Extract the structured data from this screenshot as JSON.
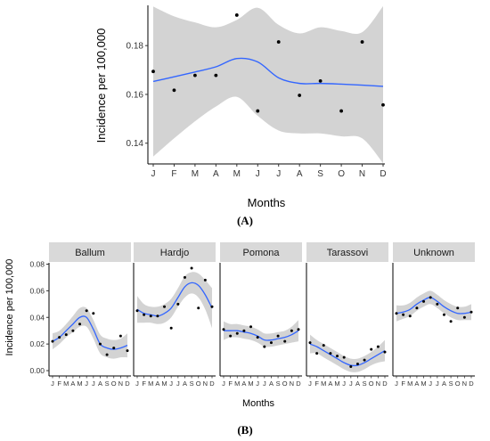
{
  "chart_data": [
    {
      "type": "scatter",
      "panel_label": "(A)",
      "xlabel": "Months",
      "ylabel": "Incidence per 100,000",
      "categories": [
        "J",
        "F",
        "M",
        "A",
        "M",
        "J",
        "J",
        "A",
        "S",
        "O",
        "N",
        "D"
      ],
      "yticks": [
        0.14,
        0.16,
        0.18
      ],
      "ylim": [
        0.1315,
        0.1965
      ],
      "points": [
        0.1694,
        0.1617,
        0.1678,
        0.1678,
        0.1925,
        0.1532,
        0.1815,
        0.1596,
        0.1655,
        0.1532,
        0.1815,
        0.1557
      ],
      "smooth": [
        0.1653,
        0.1672,
        0.1692,
        0.1713,
        0.1747,
        0.1733,
        0.1668,
        0.1645,
        0.1645,
        0.1642,
        0.1638,
        0.1633
      ],
      "band_upper": [
        0.196,
        0.192,
        0.1895,
        0.1875,
        0.1905,
        0.1955,
        0.1885,
        0.185,
        0.1875,
        0.186,
        0.1855,
        0.1962
      ],
      "band_lower": [
        0.1345,
        0.142,
        0.149,
        0.155,
        0.159,
        0.1512,
        0.1452,
        0.144,
        0.144,
        0.1428,
        0.142,
        0.1318
      ],
      "grid": false,
      "colors": {
        "line": "#3366FF",
        "band": "#D3D3D3",
        "point": "#000000"
      }
    },
    {
      "type": "scatter",
      "panel_label": "(B)",
      "xlabel": "Months",
      "ylabel": "Incidence per 100,000",
      "categories": [
        "J",
        "F",
        "M",
        "A",
        "M",
        "J",
        "J",
        "A",
        "S",
        "O",
        "N",
        "D"
      ],
      "yticks": [
        0.0,
        0.02,
        0.04,
        0.06,
        0.08
      ],
      "ylim": [
        -0.004,
        0.081
      ],
      "facets": [
        {
          "name": "Ballum",
          "points": [
            0.022,
            0.025,
            0.027,
            0.03,
            0.035,
            0.045,
            0.043,
            0.02,
            0.012,
            0.017,
            0.026,
            0.015
          ],
          "smooth": [
            0.022,
            0.025,
            0.03,
            0.035,
            0.04,
            0.04,
            0.031,
            0.02,
            0.017,
            0.016,
            0.017,
            0.019
          ],
          "band_upper": [
            0.028,
            0.03,
            0.035,
            0.041,
            0.047,
            0.047,
            0.038,
            0.027,
            0.024,
            0.023,
            0.024,
            0.028
          ],
          "band_lower": [
            0.016,
            0.02,
            0.025,
            0.029,
            0.033,
            0.033,
            0.024,
            0.013,
            0.01,
            0.009,
            0.01,
            0.01
          ]
        },
        {
          "name": "Hardjo",
          "points": [
            0.045,
            0.042,
            0.041,
            0.041,
            0.048,
            0.032,
            0.05,
            0.07,
            0.077,
            0.047,
            0.068,
            0.048
          ],
          "smooth": [
            0.046,
            0.043,
            0.042,
            0.041,
            0.043,
            0.047,
            0.055,
            0.063,
            0.066,
            0.064,
            0.057,
            0.047
          ],
          "band_upper": [
            0.056,
            0.05,
            0.048,
            0.048,
            0.05,
            0.054,
            0.062,
            0.071,
            0.074,
            0.073,
            0.068,
            0.062
          ],
          "band_lower": [
            0.036,
            0.036,
            0.036,
            0.035,
            0.036,
            0.04,
            0.048,
            0.055,
            0.058,
            0.055,
            0.046,
            0.032
          ]
        },
        {
          "name": "Pomona",
          "points": [
            0.031,
            0.026,
            0.028,
            0.03,
            0.033,
            0.025,
            0.018,
            0.021,
            0.026,
            0.022,
            0.03,
            0.031
          ],
          "smooth": [
            0.03,
            0.03,
            0.03,
            0.029,
            0.028,
            0.026,
            0.023,
            0.023,
            0.024,
            0.025,
            0.027,
            0.03
          ],
          "band_upper": [
            0.037,
            0.035,
            0.035,
            0.034,
            0.033,
            0.031,
            0.028,
            0.028,
            0.029,
            0.03,
            0.033,
            0.038
          ],
          "band_lower": [
            0.023,
            0.025,
            0.025,
            0.024,
            0.023,
            0.021,
            0.018,
            0.018,
            0.019,
            0.02,
            0.021,
            0.022
          ]
        },
        {
          "name": "Tarassovi",
          "points": [
            0.021,
            0.013,
            0.019,
            0.013,
            0.011,
            0.01,
            0.003,
            0.005,
            0.008,
            0.016,
            0.018,
            0.014
          ],
          "smooth": [
            0.02,
            0.018,
            0.015,
            0.012,
            0.009,
            0.006,
            0.004,
            0.004,
            0.006,
            0.009,
            0.012,
            0.015
          ],
          "band_upper": [
            0.027,
            0.023,
            0.02,
            0.017,
            0.014,
            0.011,
            0.009,
            0.009,
            0.011,
            0.014,
            0.018,
            0.023
          ],
          "band_lower": [
            0.013,
            0.013,
            0.01,
            0.007,
            0.004,
            0.001,
            -0.001,
            -0.001,
            0.001,
            0.004,
            0.006,
            0.007
          ]
        },
        {
          "name": "Unknown",
          "points": [
            0.043,
            0.042,
            0.041,
            0.047,
            0.052,
            0.055,
            0.05,
            0.042,
            0.037,
            0.047,
            0.04,
            0.044
          ],
          "smooth": [
            0.043,
            0.044,
            0.046,
            0.05,
            0.053,
            0.055,
            0.052,
            0.048,
            0.045,
            0.043,
            0.043,
            0.044
          ],
          "band_upper": [
            0.049,
            0.049,
            0.051,
            0.055,
            0.058,
            0.06,
            0.057,
            0.053,
            0.05,
            0.048,
            0.048,
            0.05
          ],
          "band_lower": [
            0.037,
            0.039,
            0.041,
            0.045,
            0.048,
            0.05,
            0.047,
            0.043,
            0.04,
            0.038,
            0.038,
            0.038
          ]
        }
      ],
      "grid": false,
      "colors": {
        "line": "#3366FF",
        "band": "#D3D3D3",
        "point": "#000000",
        "strip": "#D9D9D9"
      }
    }
  ]
}
